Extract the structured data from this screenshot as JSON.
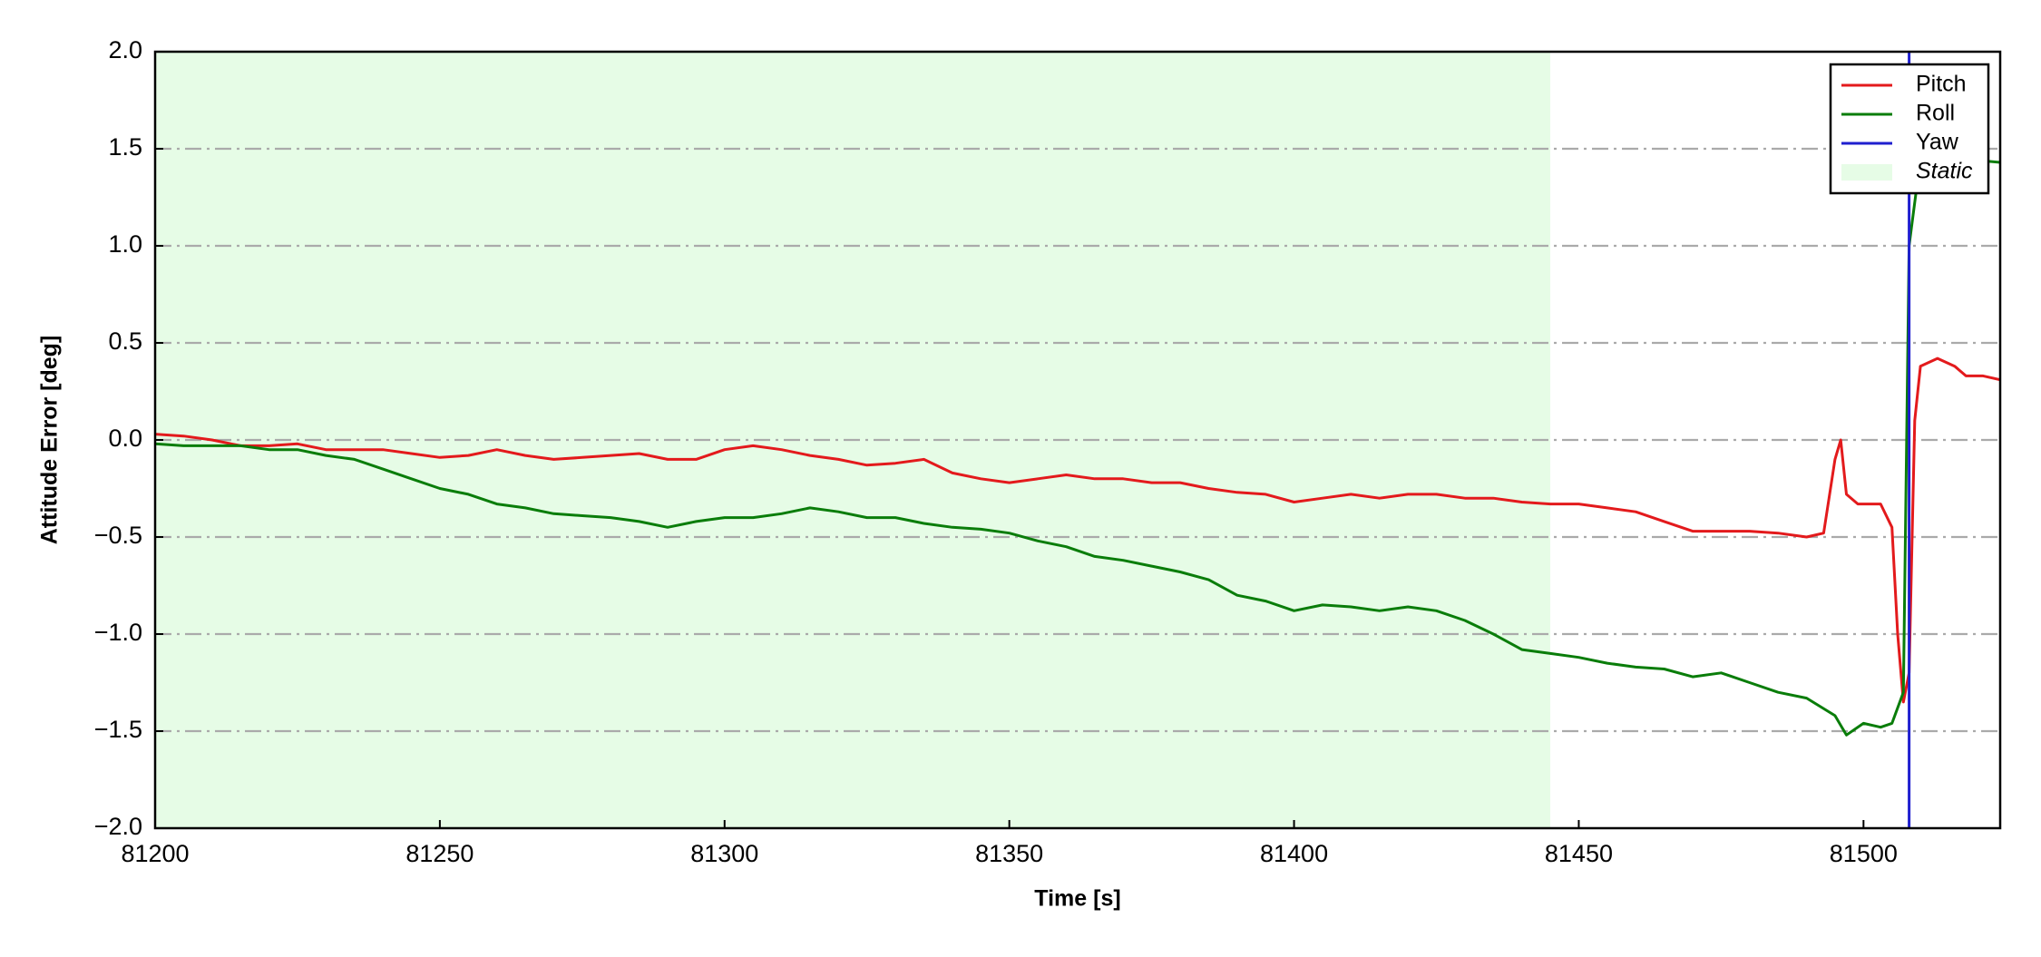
{
  "chart_data": {
    "type": "line",
    "x_label": "Time [s]",
    "y_label": "Attitude Error [deg]",
    "xlim": [
      81200,
      81524
    ],
    "ylim": [
      -2.0,
      2.0
    ],
    "xticks": [
      81200,
      81250,
      81300,
      81350,
      81400,
      81450,
      81500
    ],
    "yticks": [
      {
        "value": -2.0,
        "label": "−2.0"
      },
      {
        "value": -1.5,
        "label": "−1.5"
      },
      {
        "value": -1.0,
        "label": "−1.0"
      },
      {
        "value": -0.5,
        "label": "−0.5"
      },
      {
        "value": 0.0,
        "label": "0.0"
      },
      {
        "value": 0.5,
        "label": "0.5"
      },
      {
        "value": 1.0,
        "label": "1.0"
      },
      {
        "value": 1.5,
        "label": "1.5"
      },
      {
        "value": 2.0,
        "label": "2.0"
      }
    ],
    "grid": true,
    "legend": "upper right",
    "shaded_region": {
      "name": "Static",
      "color": "#e6fce6",
      "x": [
        81200,
        81445
      ]
    },
    "series": [
      {
        "name": "Pitch",
        "color": "#e31a1c",
        "x": [
          81200,
          81205,
          81210,
          81215,
          81220,
          81225,
          81230,
          81235,
          81240,
          81245,
          81250,
          81255,
          81260,
          81265,
          81270,
          81275,
          81280,
          81285,
          81290,
          81295,
          81300,
          81305,
          81310,
          81315,
          81320,
          81325,
          81330,
          81335,
          81340,
          81345,
          81350,
          81355,
          81360,
          81365,
          81370,
          81375,
          81380,
          81385,
          81390,
          81395,
          81400,
          81405,
          81410,
          81415,
          81420,
          81425,
          81430,
          81435,
          81440,
          81445,
          81450,
          81455,
          81460,
          81465,
          81470,
          81475,
          81480,
          81485,
          81490,
          81493,
          81495,
          81496,
          81497,
          81499,
          81503,
          81505,
          81506,
          81507,
          81508,
          81509,
          81510,
          81513,
          81516,
          81518,
          81521,
          81524
        ],
        "values": [
          0.03,
          0.02,
          0.0,
          -0.03,
          -0.03,
          -0.02,
          -0.05,
          -0.05,
          -0.05,
          -0.07,
          -0.09,
          -0.08,
          -0.05,
          -0.08,
          -0.1,
          -0.09,
          -0.08,
          -0.07,
          -0.1,
          -0.1,
          -0.05,
          -0.03,
          -0.05,
          -0.08,
          -0.1,
          -0.13,
          -0.12,
          -0.1,
          -0.17,
          -0.2,
          -0.22,
          -0.2,
          -0.18,
          -0.2,
          -0.2,
          -0.22,
          -0.22,
          -0.25,
          -0.27,
          -0.28,
          -0.32,
          -0.3,
          -0.28,
          -0.3,
          -0.28,
          -0.28,
          -0.3,
          -0.3,
          -0.32,
          -0.33,
          -0.33,
          -0.35,
          -0.37,
          -0.42,
          -0.47,
          -0.47,
          -0.47,
          -0.48,
          -0.5,
          -0.48,
          -0.1,
          0.0,
          -0.28,
          -0.33,
          -0.33,
          -0.45,
          -1.0,
          -1.35,
          -1.2,
          0.1,
          0.38,
          0.42,
          0.38,
          0.33,
          0.33,
          0.31
        ]
      },
      {
        "name": "Roll",
        "color": "#0a7d0a",
        "x": [
          81200,
          81205,
          81210,
          81215,
          81220,
          81225,
          81230,
          81235,
          81240,
          81245,
          81250,
          81255,
          81260,
          81265,
          81270,
          81275,
          81280,
          81285,
          81290,
          81295,
          81300,
          81305,
          81310,
          81315,
          81320,
          81325,
          81330,
          81335,
          81340,
          81345,
          81350,
          81355,
          81360,
          81365,
          81370,
          81375,
          81380,
          81385,
          81390,
          81395,
          81400,
          81405,
          81410,
          81415,
          81420,
          81425,
          81430,
          81435,
          81440,
          81445,
          81450,
          81455,
          81460,
          81465,
          81470,
          81475,
          81480,
          81485,
          81490,
          81495,
          81497,
          81500,
          81503,
          81505,
          81507,
          81508,
          81510,
          81515,
          81520,
          81524
        ],
        "values": [
          -0.02,
          -0.03,
          -0.03,
          -0.03,
          -0.05,
          -0.05,
          -0.08,
          -0.1,
          -0.15,
          -0.2,
          -0.25,
          -0.28,
          -0.33,
          -0.35,
          -0.38,
          -0.39,
          -0.4,
          -0.42,
          -0.45,
          -0.42,
          -0.4,
          -0.4,
          -0.38,
          -0.35,
          -0.37,
          -0.4,
          -0.4,
          -0.43,
          -0.45,
          -0.46,
          -0.48,
          -0.52,
          -0.55,
          -0.6,
          -0.62,
          -0.65,
          -0.68,
          -0.72,
          -0.8,
          -0.83,
          -0.88,
          -0.85,
          -0.86,
          -0.88,
          -0.86,
          -0.88,
          -0.93,
          -1.0,
          -1.08,
          -1.1,
          -1.12,
          -1.15,
          -1.17,
          -1.18,
          -1.22,
          -1.2,
          -1.25,
          -1.3,
          -1.33,
          -1.42,
          -1.52,
          -1.46,
          -1.48,
          -1.46,
          -1.3,
          1.0,
          1.45,
          1.47,
          1.44,
          1.43
        ]
      },
      {
        "name": "Yaw",
        "color": "#1f1fcf",
        "x": [
          81508,
          81508
        ],
        "values": [
          -2.0,
          2.0
        ]
      }
    ]
  }
}
